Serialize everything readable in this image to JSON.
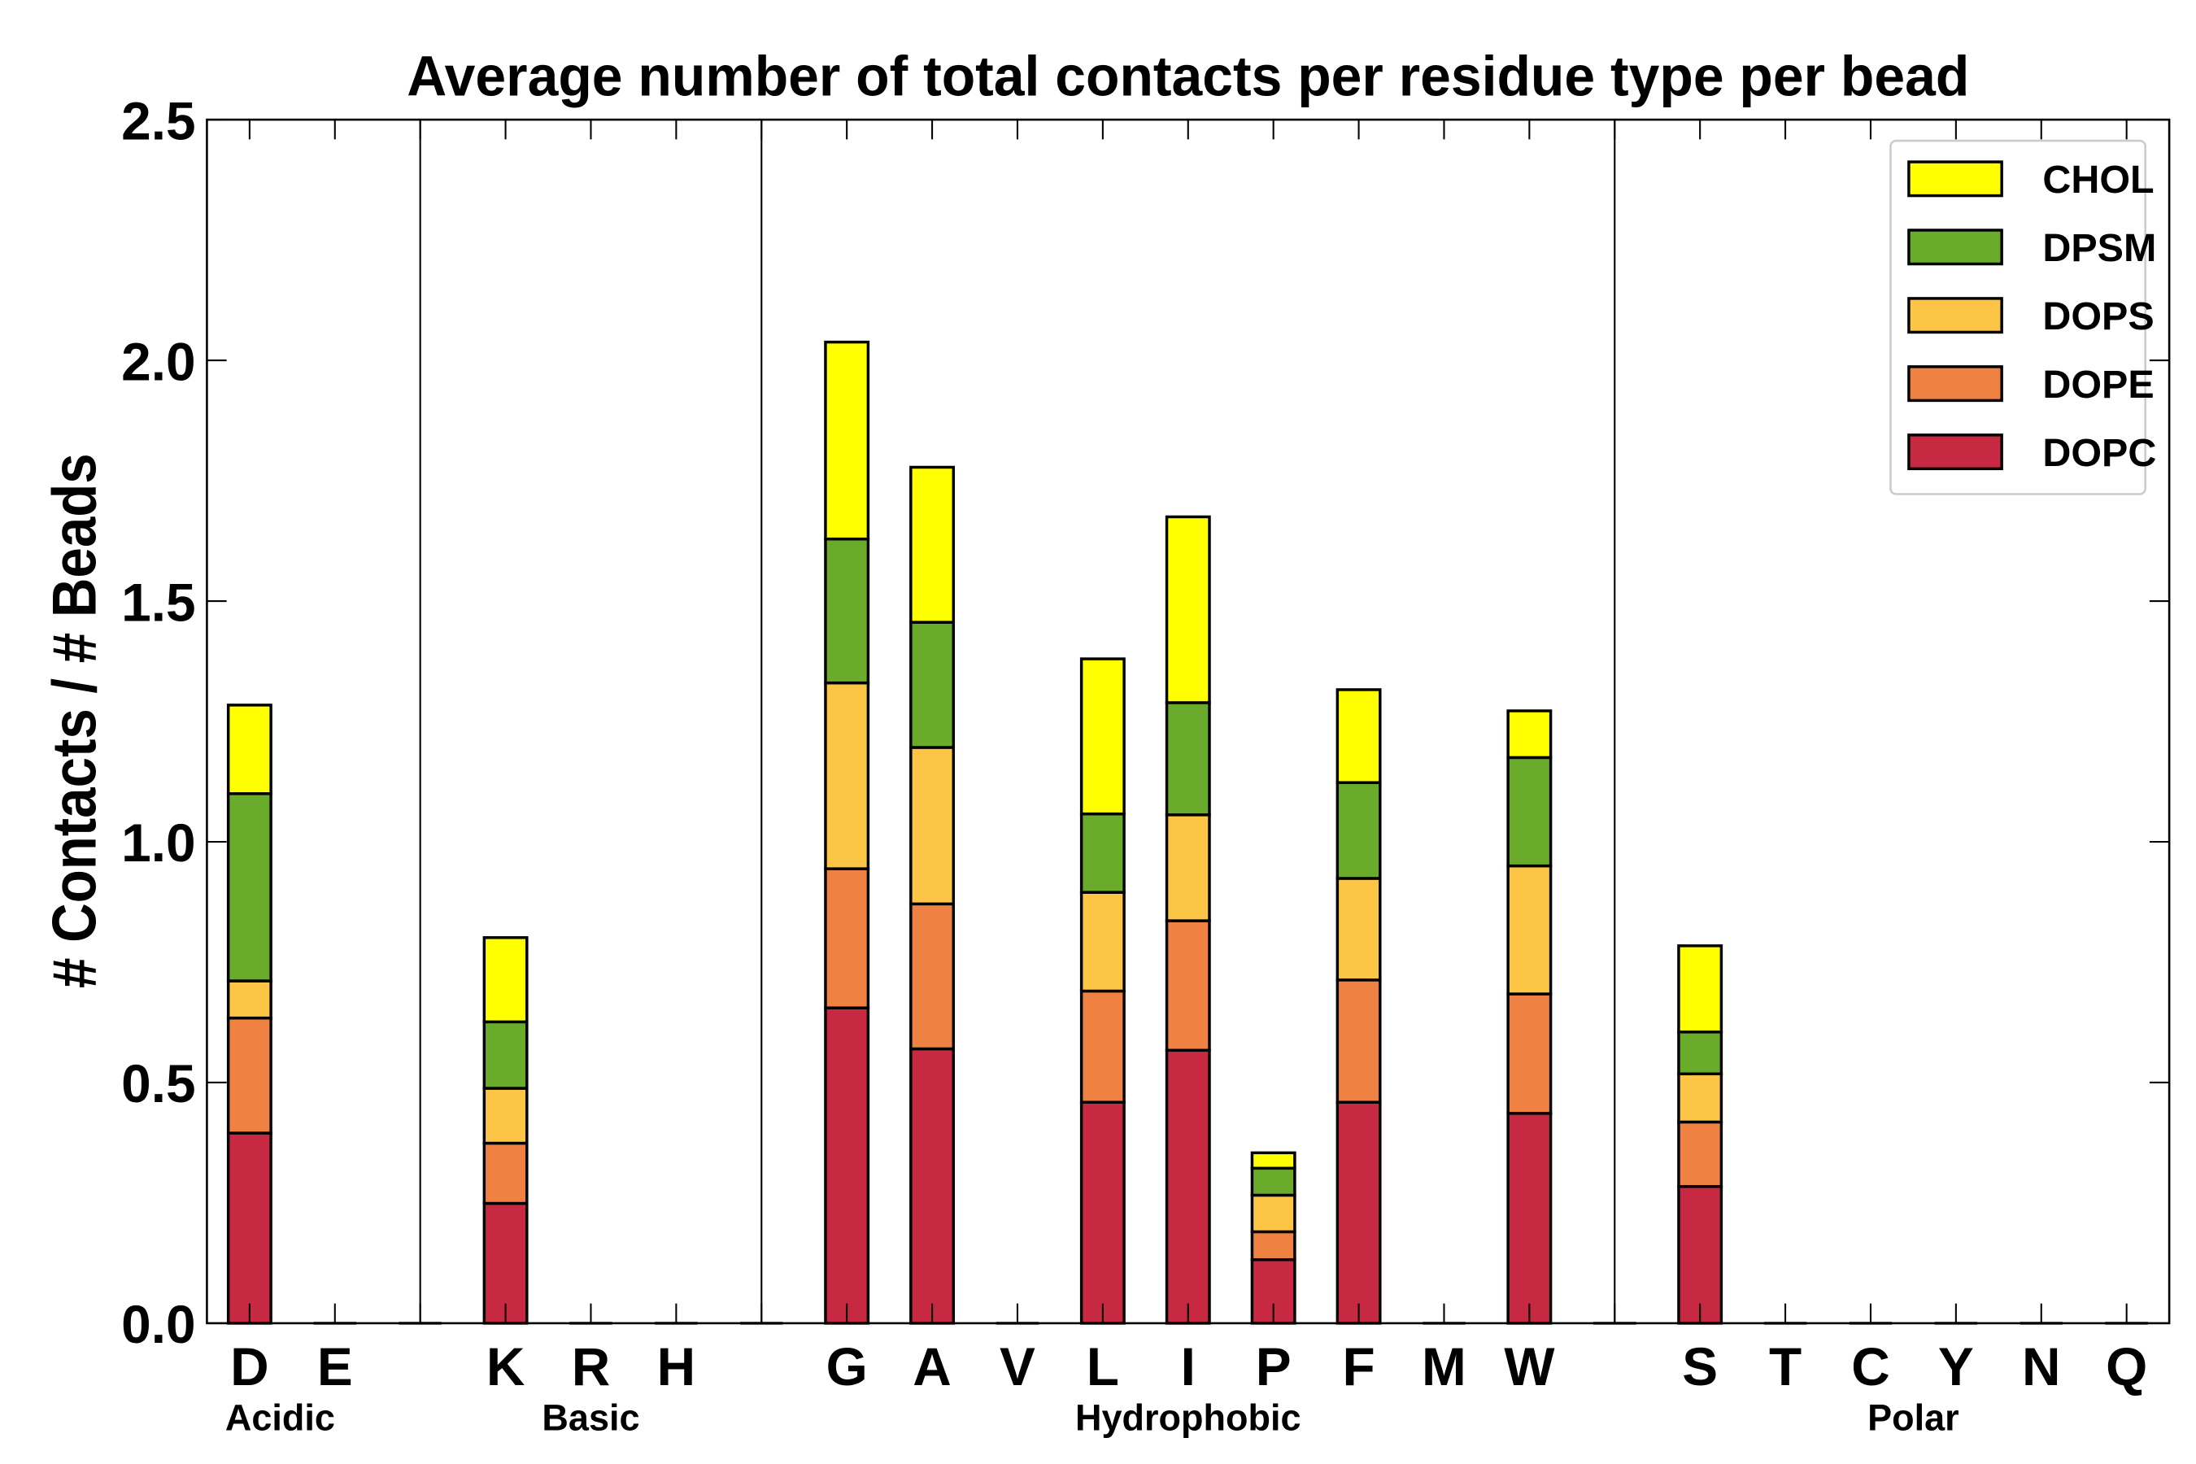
{
  "chart_data": {
    "type": "bar",
    "stacked": true,
    "title": "Average number of total contacts per residue type per bead",
    "xlabel": "",
    "ylabel": "# Contacts / # Beads",
    "ylim": [
      0,
      2.5
    ],
    "yticks": [
      "0.0",
      "0.5",
      "1.0",
      "1.5",
      "2.0",
      "2.5"
    ],
    "legend_position": "top-right",
    "categories": [
      "D",
      "E",
      "",
      "K",
      "R",
      "H",
      "",
      "G",
      "A",
      "V",
      "L",
      "I",
      "P",
      "F",
      "M",
      "W",
      "",
      "S",
      "T",
      "C",
      "Y",
      "N",
      "Q"
    ],
    "groups": [
      {
        "label": "Acidic",
        "from": 0,
        "to": 1
      },
      {
        "label": "Basic",
        "from": 3,
        "to": 5
      },
      {
        "label": "Hydrophobic",
        "from": 7,
        "to": 15
      },
      {
        "label": "Polar",
        "from": 17,
        "to": 22
      }
    ],
    "separators_after": [
      1,
      5,
      15
    ],
    "series": [
      {
        "name": "DOPC",
        "color": "#c72842",
        "values": [
          0.395,
          0,
          0,
          0.249,
          0,
          0,
          0,
          0.655,
          0.57,
          0,
          0.459,
          0.567,
          0.132,
          0.459,
          0,
          0.436,
          0,
          0.284,
          0,
          0,
          0,
          0,
          0
        ]
      },
      {
        "name": "DOPE",
        "color": "#ef8142",
        "values": [
          0.239,
          0,
          0,
          0.125,
          0,
          0,
          0,
          0.289,
          0.301,
          0,
          0.231,
          0.269,
          0.058,
          0.254,
          0,
          0.248,
          0,
          0.134,
          0,
          0,
          0,
          0,
          0
        ]
      },
      {
        "name": "DOPS",
        "color": "#fcc545",
        "values": [
          0.077,
          0,
          0,
          0.114,
          0,
          0,
          0,
          0.386,
          0.325,
          0,
          0.205,
          0.22,
          0.076,
          0.211,
          0,
          0.266,
          0,
          0.1,
          0,
          0,
          0,
          0,
          0
        ]
      },
      {
        "name": "DPSM",
        "color": "#6aab2c",
        "values": [
          0.389,
          0,
          0,
          0.138,
          0,
          0,
          0,
          0.299,
          0.26,
          0,
          0.163,
          0.233,
          0.056,
          0.199,
          0,
          0.225,
          0,
          0.087,
          0,
          0,
          0,
          0,
          0
        ]
      },
      {
        "name": "CHOL",
        "color": "#ffff00",
        "values": [
          0.184,
          0,
          0,
          0.175,
          0,
          0,
          0,
          0.409,
          0.322,
          0,
          0.322,
          0.386,
          0.032,
          0.193,
          0,
          0.097,
          0,
          0.179,
          0,
          0,
          0,
          0,
          0
        ]
      }
    ]
  }
}
